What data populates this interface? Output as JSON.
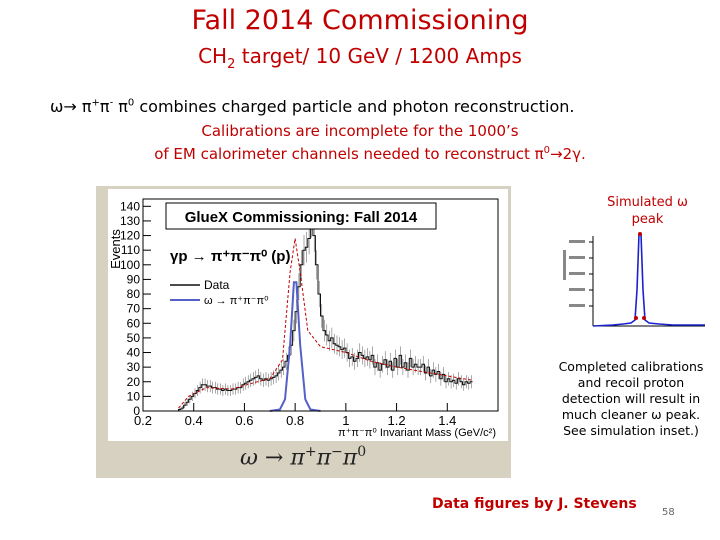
{
  "slide": {
    "title": "Fall 2014 Commissioning",
    "subtitle_pre": "CH",
    "subtitle_sub": "2",
    "subtitle_post": " target/ 10 GeV / 1200 Amps",
    "line1_a": "ω→ π",
    "line1_sup1": "+",
    "line1_b": "π",
    "line1_sup2": "-",
    "line1_c": " π",
    "line1_sup3": "0",
    "line1_d": "  combines charged  particle and photon reconstruction.",
    "line2": "Calibrations are incomplete for the 1000’s",
    "line3_a": "of EM calorimeter channels needed to reconstruct  π",
    "line3_sup": "0",
    "line3_b": "→2γ.",
    "inset_label": "Simulated ω peak",
    "note": "Completed calibrations and recoil proton detection will result in much cleaner ω peak. See simulation inset.)",
    "credit": "Data figures by J. Stevens",
    "page_number": "58",
    "formula_a": "ω → π",
    "formula_sup1": "+",
    "formula_b": "π",
    "formula_sup2": "−",
    "formula_c": "π",
    "formula_sup3": "0"
  },
  "chart_data": {
    "type": "bar",
    "title": "GlueX Commissioning: Fall 2014",
    "reaction": "γp → π⁺π⁻π⁰ (p)",
    "xlabel": "π⁺π⁻π⁰ Invariant Mass (GeV/c²)",
    "ylabel": "Events",
    "xlim": [
      0.2,
      1.6
    ],
    "ylim": [
      0,
      145
    ],
    "xticks": [
      0.2,
      0.4,
      0.6,
      0.8,
      1,
      1.2,
      1.4
    ],
    "yticks": [
      0,
      10,
      20,
      30,
      40,
      50,
      60,
      70,
      80,
      90,
      100,
      110,
      120,
      130,
      140
    ],
    "legend": [
      "Data",
      "ω → π⁺π⁻π⁰"
    ],
    "colors": {
      "data": "#111111",
      "fit": "#c00000",
      "mc": "#5560c8"
    },
    "data_x_start": 0.34,
    "data_bin_width": 0.01,
    "data_values": [
      1,
      2,
      4,
      6,
      8,
      10,
      12,
      14,
      16,
      18,
      18,
      17,
      17,
      16,
      16,
      15,
      15,
      14,
      15,
      14,
      14,
      15,
      15,
      16,
      16,
      18,
      19,
      20,
      21,
      22,
      23,
      24,
      22,
      21,
      22,
      21,
      22,
      23,
      24,
      26,
      28,
      30,
      34,
      38,
      45,
      55,
      68,
      85,
      100,
      110,
      112,
      118,
      130,
      120,
      100,
      80,
      65,
      55,
      52,
      48,
      50,
      46,
      45,
      44,
      42,
      43,
      40,
      36,
      37,
      34,
      36,
      40,
      38,
      36,
      37,
      35,
      38,
      30,
      33,
      28,
      32,
      35,
      30,
      34,
      28,
      36,
      30,
      38,
      30,
      33,
      28,
      36,
      30,
      32,
      30,
      30,
      32,
      26,
      30,
      24,
      28,
      25,
      27,
      22,
      25,
      20,
      22,
      20,
      21,
      19,
      22,
      20,
      18,
      20,
      19,
      20
    ],
    "fit": [
      [
        0.34,
        2
      ],
      [
        0.38,
        10
      ],
      [
        0.45,
        16
      ],
      [
        0.55,
        15
      ],
      [
        0.65,
        20
      ],
      [
        0.7,
        22
      ],
      [
        0.75,
        35
      ],
      [
        0.78,
        95
      ],
      [
        0.8,
        118
      ],
      [
        0.82,
        95
      ],
      [
        0.85,
        55
      ],
      [
        0.9,
        44
      ],
      [
        1.0,
        40
      ],
      [
        1.1,
        34
      ],
      [
        1.2,
        30
      ],
      [
        1.3,
        27
      ],
      [
        1.4,
        24
      ],
      [
        1.5,
        21
      ]
    ],
    "simulation": [
      [
        0.7,
        0
      ],
      [
        0.74,
        1
      ],
      [
        0.76,
        8
      ],
      [
        0.78,
        45
      ],
      [
        0.795,
        88
      ],
      [
        0.805,
        88
      ],
      [
        0.82,
        45
      ],
      [
        0.84,
        8
      ],
      [
        0.86,
        1
      ],
      [
        0.9,
        0
      ]
    ]
  }
}
